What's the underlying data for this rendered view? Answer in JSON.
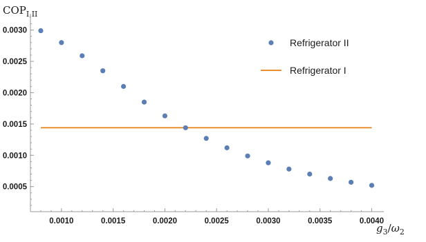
{
  "chart_data": {
    "type": "scatter",
    "ylabel": {
      "main": "COP",
      "sub": "I,II"
    },
    "xlabel": {
      "num": "g",
      "num_sub": "3",
      "sep": "/",
      "den": "ω",
      "den_sub": "2"
    },
    "xlim": [
      0.0007,
      0.00405
    ],
    "ylim": [
      0.0001,
      0.00315
    ],
    "x_ticks": [
      0.001,
      0.0015,
      0.002,
      0.0025,
      0.003,
      0.0035,
      0.004
    ],
    "x_tick_labels": [
      "0.0010",
      "0.0015",
      "0.0020",
      "0.0025",
      "0.0030",
      "0.0035",
      "0.0040"
    ],
    "y_ticks": [
      0.0005,
      0.001,
      0.0015,
      0.002,
      0.0025,
      0.003
    ],
    "y_tick_labels": [
      "0.0005",
      "0.0010",
      "0.0015",
      "0.0020",
      "0.0025",
      "0.0030"
    ],
    "legend_position": "top-right",
    "series": [
      {
        "name": "Refrigerator II",
        "kind": "points",
        "color": "#5b7fb5",
        "x": [
          0.0008,
          0.001,
          0.0012,
          0.0014,
          0.0016,
          0.0018,
          0.002,
          0.0022,
          0.0024,
          0.0026,
          0.0028,
          0.003,
          0.0032,
          0.0034,
          0.0036,
          0.0038,
          0.004
        ],
        "y": [
          0.00299,
          0.0028,
          0.00259,
          0.00235,
          0.0021,
          0.00185,
          0.00163,
          0.00144,
          0.00127,
          0.00112,
          0.00099,
          0.00088,
          0.00078,
          0.0007,
          0.00063,
          0.00057,
          0.00052
        ]
      },
      {
        "name": "Refrigerator I",
        "kind": "line",
        "color": "#e8902f",
        "x": [
          0.0008,
          0.004
        ],
        "y": [
          0.00144,
          0.00144
        ]
      }
    ]
  }
}
